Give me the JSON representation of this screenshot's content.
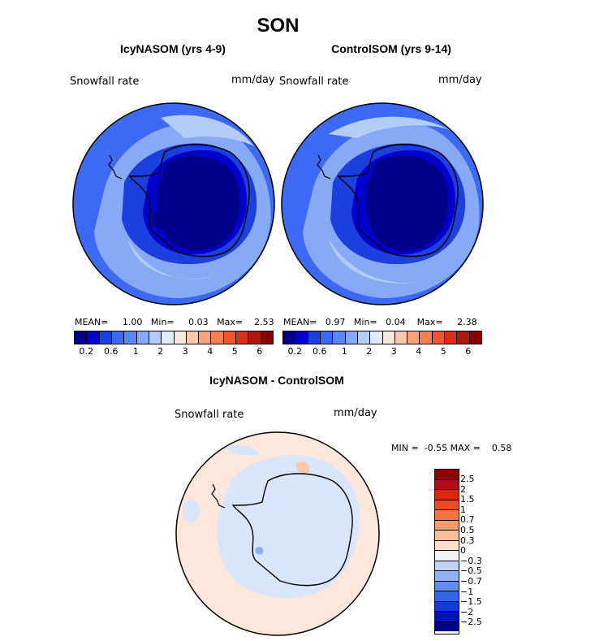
{
  "figure": {
    "title": "SON"
  },
  "panels": [
    {
      "title": "IcyNASOM (yrs 4-9)",
      "variable": "Snowfall rate",
      "units": "mm/day",
      "stats": {
        "mean_label": "MEAN=",
        "mean": "1.00",
        "min_label": "Min=",
        "min": "0.03",
        "max_label": "Max=",
        "max": "2.53"
      }
    },
    {
      "title": "ControlSOM (yrs 9-14)",
      "variable": "Snowfall rate",
      "units": "mm/day",
      "stats": {
        "mean_label": "MEAN=",
        "mean": "0.97",
        "min_label": "Min=",
        "min": "0.04",
        "max_label": "Max=",
        "max": "2.38"
      }
    },
    {
      "title": "IcyNASOM - ControlSOM",
      "variable": "Snowfall rate",
      "units": "mm/day",
      "stats": {
        "min_label": "MIN =",
        "min": "-0.55",
        "max_label": "MAX =",
        "max": "0.58"
      }
    }
  ],
  "colorbar_main": {
    "tick_labels": [
      "0.2",
      "0.6",
      "1",
      "2",
      "3",
      "4",
      "5",
      "6"
    ],
    "colors": [
      "#00008b",
      "#0000cd",
      "#1c3fe0",
      "#3d6af5",
      "#5a88f0",
      "#86aaf6",
      "#b4ccfa",
      "#e2ecfc",
      "#fde6da",
      "#fbc7ad",
      "#f9a37e",
      "#f77f52",
      "#f2542c",
      "#d9301a",
      "#b0180e",
      "#8b0000"
    ]
  },
  "colorbar_diff": {
    "levels": [
      "2.5",
      "2",
      "1.5",
      "1",
      "0.7",
      "0.5",
      "0.3",
      "0",
      "−0.3",
      "−0.5",
      "−0.7",
      "−1",
      "−1.5",
      "−2",
      "−2.5"
    ],
    "colors": [
      "#8b0000",
      "#b01010",
      "#d42a14",
      "#f04a25",
      "#f4733f",
      "#f89a6a",
      "#fbbd98",
      "#fde0cc",
      "#f2f4f8",
      "#c0d4fb",
      "#8fb1f6",
      "#5f8ff0",
      "#3466ea",
      "#123bd9",
      "#0010b8",
      "#000088"
    ]
  },
  "map_fills": {
    "ocean_high": "#3d6af5",
    "ocean_mid": "#86aaf6",
    "ocean_light": "#b4ccfa",
    "ocean_dark": "#1c3fe0",
    "ice_edge": "#0000cd",
    "ice_interior": "#00008b",
    "diff_bg": "#fde6da",
    "diff_blue": "#d8e6fc",
    "diff_pos": "#fbc7ad"
  }
}
